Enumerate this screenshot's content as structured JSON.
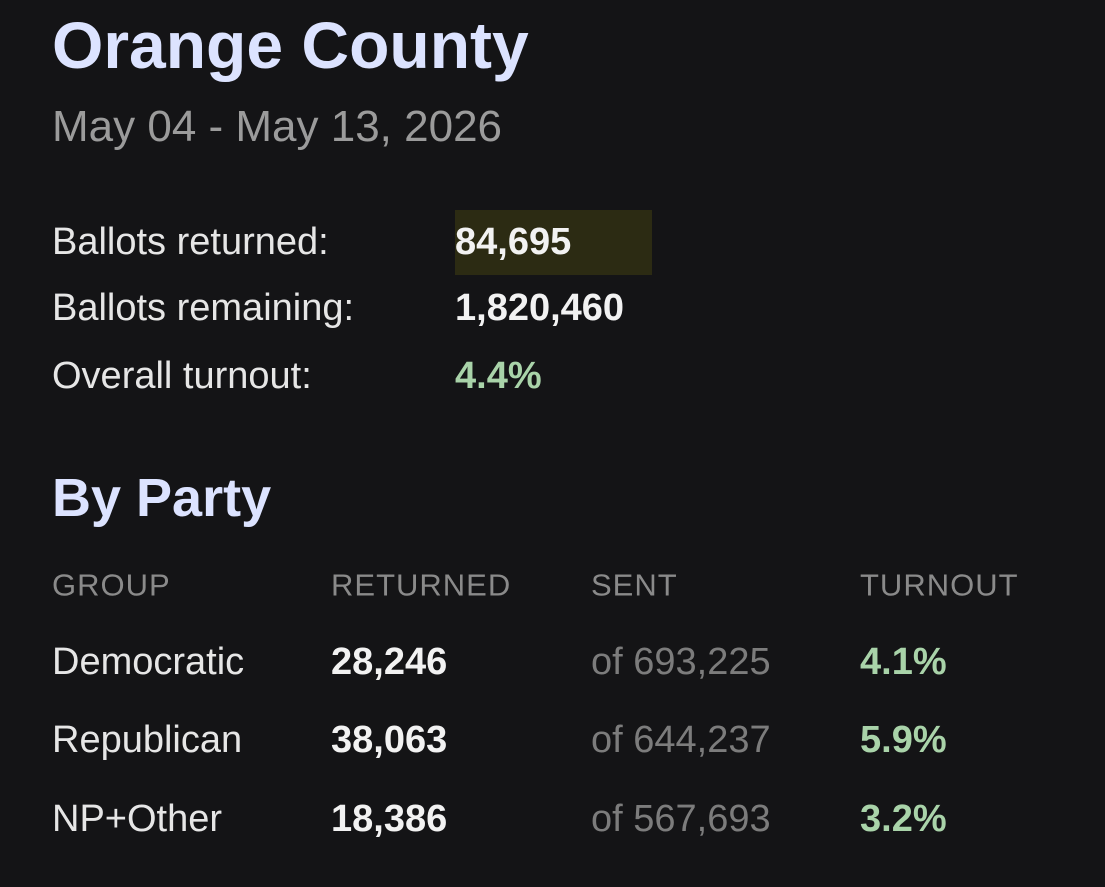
{
  "header": {
    "title": "Orange County",
    "subtitle": "May 04 - May 13, 2026"
  },
  "summary": {
    "rows": [
      {
        "label": "Ballots returned:",
        "value": "84,695"
      },
      {
        "label": "Ballots remaining:",
        "value": "1,820,460"
      },
      {
        "label": "Overall turnout:",
        "value": "4.4%"
      }
    ]
  },
  "party": {
    "title": "By Party",
    "columns": [
      "GROUP",
      "RETURNED",
      "SENT",
      "TURNOUT"
    ],
    "rows": [
      [
        "Democratic",
        "28,246",
        "of 693,225",
        "4.1%"
      ],
      [
        "Republican",
        "38,063",
        "of 644,237",
        "5.9%"
      ],
      [
        "NP+Other",
        "18,386",
        "of 567,693",
        "3.2%"
      ]
    ]
  }
}
